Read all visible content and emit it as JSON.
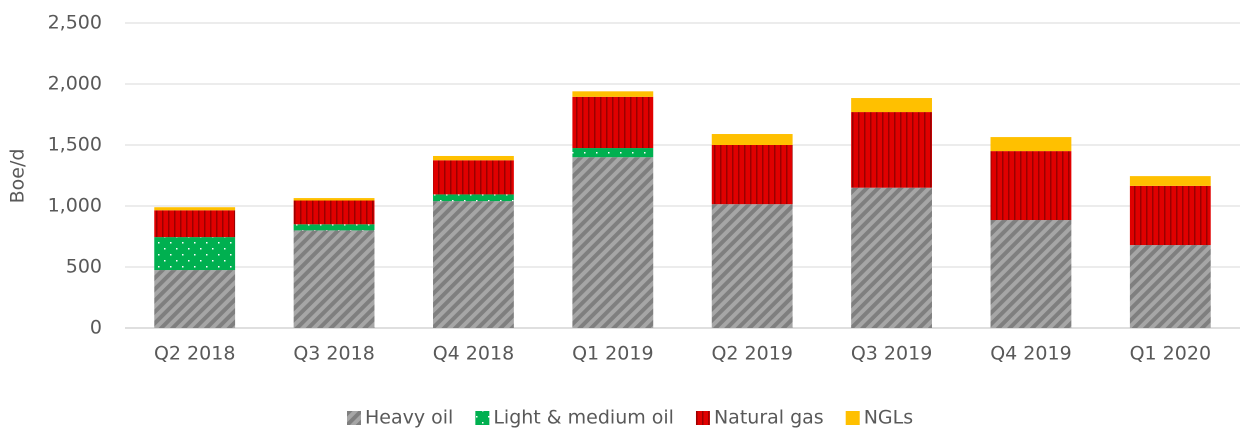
{
  "chart_data": {
    "type": "stacked_bar",
    "y_label": "Boe/d",
    "categories": [
      "Q2 2018",
      "Q3 2018",
      "Q4 2018",
      "Q1 2019",
      "Q2 2019",
      "Q3 2019",
      "Q4 2019",
      "Q1 2020"
    ],
    "series": [
      {
        "name": "Heavy oil",
        "color": "#7f7f7f",
        "pattern": "diagonal",
        "values": [
          475,
          800,
          1040,
          1400,
          1015,
          1150,
          885,
          680
        ]
      },
      {
        "name": "Light & medium oil",
        "color": "#00b050",
        "pattern": "dots",
        "values": [
          270,
          50,
          55,
          75,
          0,
          0,
          0,
          0
        ]
      },
      {
        "name": "Natural gas",
        "color": "#e00000",
        "pattern": "vertical",
        "values": [
          220,
          195,
          280,
          420,
          485,
          620,
          565,
          485
        ]
      },
      {
        "name": "NGLs",
        "color": "#ffc000",
        "pattern": "solid",
        "values": [
          25,
          20,
          35,
          45,
          90,
          115,
          115,
          80
        ]
      }
    ],
    "ylim": [
      0,
      2500
    ],
    "yticks": [
      0,
      500,
      {
        "value": 1000,
        "label": "1,000"
      },
      {
        "value": 1500,
        "label": "1,500"
      },
      {
        "value": 2000,
        "label": "2,000"
      },
      {
        "value": 2500,
        "label": "2,500"
      }
    ],
    "grid": true,
    "legend": "bottom"
  }
}
